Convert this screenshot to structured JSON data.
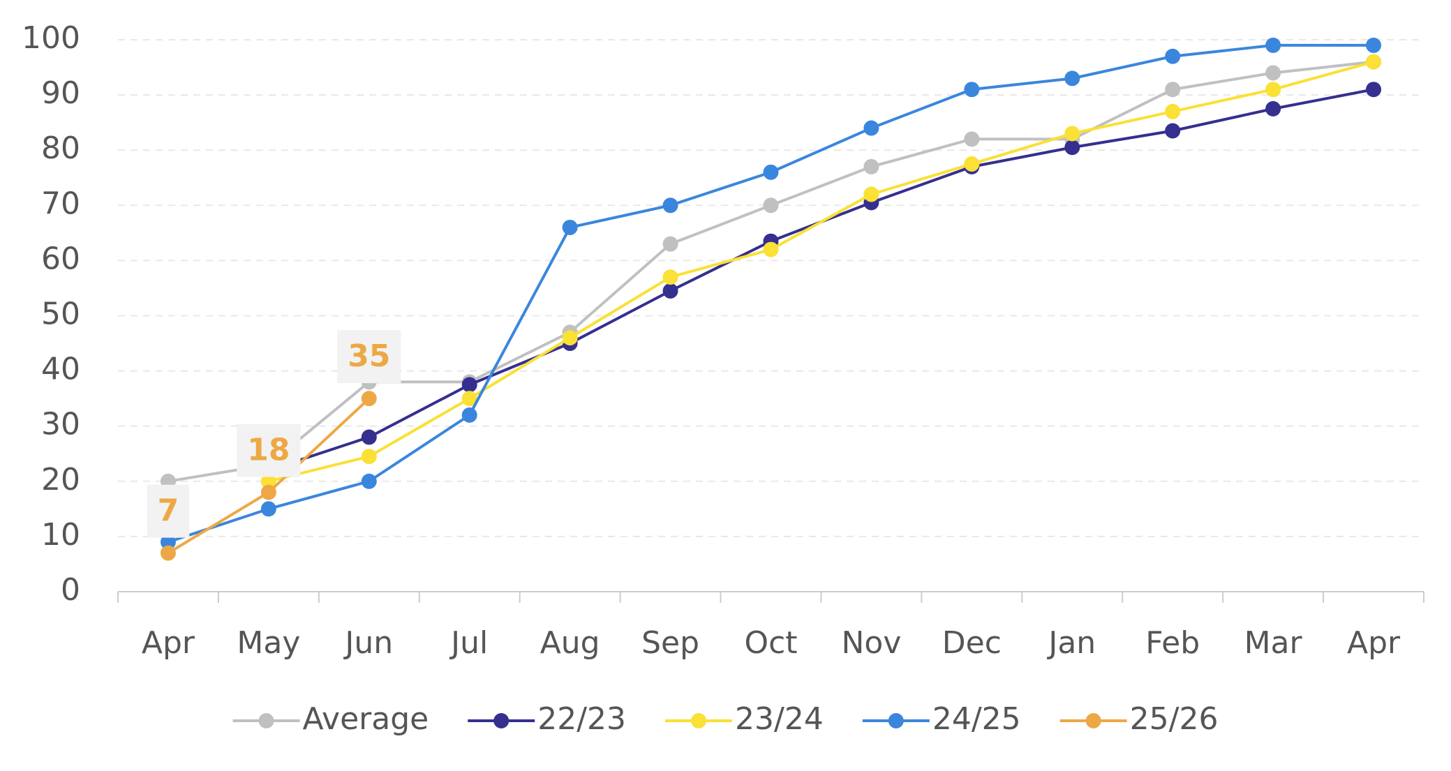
{
  "chart_data": {
    "type": "line",
    "categories": [
      "Apr",
      "May",
      "Jun",
      "Jul",
      "Aug",
      "Sep",
      "Oct",
      "Nov",
      "Dec",
      "Jan",
      "Feb",
      "Mar",
      "Apr"
    ],
    "series": [
      {
        "name": "Average",
        "color": "#c0c0c0",
        "values": [
          20,
          23,
          38,
          38,
          47,
          63,
          70,
          77,
          82,
          82,
          91,
          94,
          96
        ]
      },
      {
        "name": "22/23",
        "color": "#352f8f",
        "values": [
          null,
          22,
          28,
          37.5,
          45,
          54.5,
          63.5,
          70.5,
          77,
          80.5,
          83.5,
          87.5,
          91
        ]
      },
      {
        "name": "23/24",
        "color": "#fbe035",
        "values": [
          null,
          20,
          24.5,
          35,
          46,
          57,
          62,
          72,
          77.5,
          83,
          87,
          91,
          96
        ]
      },
      {
        "name": "24/25",
        "color": "#3a86dd",
        "values": [
          9,
          15,
          20,
          32,
          66,
          70,
          76,
          84,
          91,
          93,
          97,
          99,
          99
        ]
      },
      {
        "name": "25/26",
        "color": "#eda845",
        "values": [
          7,
          18,
          35,
          null,
          null,
          null,
          null,
          null,
          null,
          null,
          null,
          null,
          null
        ]
      }
    ],
    "ylim": [
      0,
      100
    ],
    "yticks": [
      0,
      10,
      20,
      30,
      40,
      50,
      60,
      70,
      80,
      90,
      100
    ],
    "grid": true,
    "legend": "bottom"
  }
}
